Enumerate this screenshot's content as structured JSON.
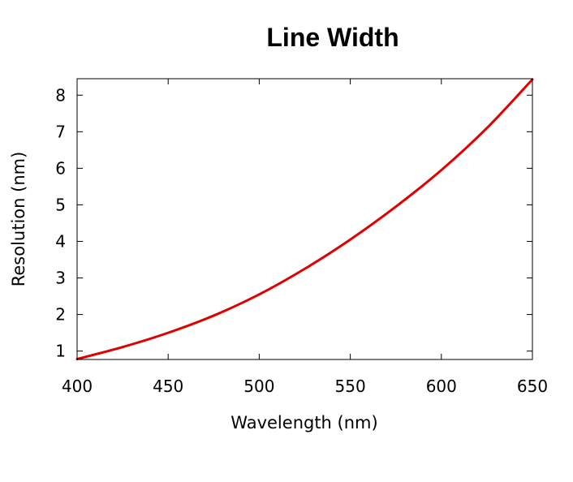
{
  "chart_data": {
    "type": "line",
    "title": "Line Width",
    "xlabel": "Wavelength (nm)",
    "ylabel": "Resolution (nm)",
    "xlim": [
      400,
      650
    ],
    "ylim": [
      0.77,
      8.45
    ],
    "xticks": [
      400,
      450,
      500,
      550,
      600,
      650
    ],
    "yticks": [
      1,
      2,
      3,
      4,
      5,
      6,
      7,
      8
    ],
    "grid": false,
    "legend": "none",
    "series": [
      {
        "color": "#e00000",
        "x": [
          400,
          425,
          450,
          475,
          500,
          525,
          550,
          575,
          600,
          625,
          650
        ],
        "y": [
          0.78,
          1.11,
          1.5,
          1.97,
          2.55,
          3.25,
          4.05,
          4.95,
          5.95,
          7.1,
          8.43
        ]
      }
    ]
  }
}
